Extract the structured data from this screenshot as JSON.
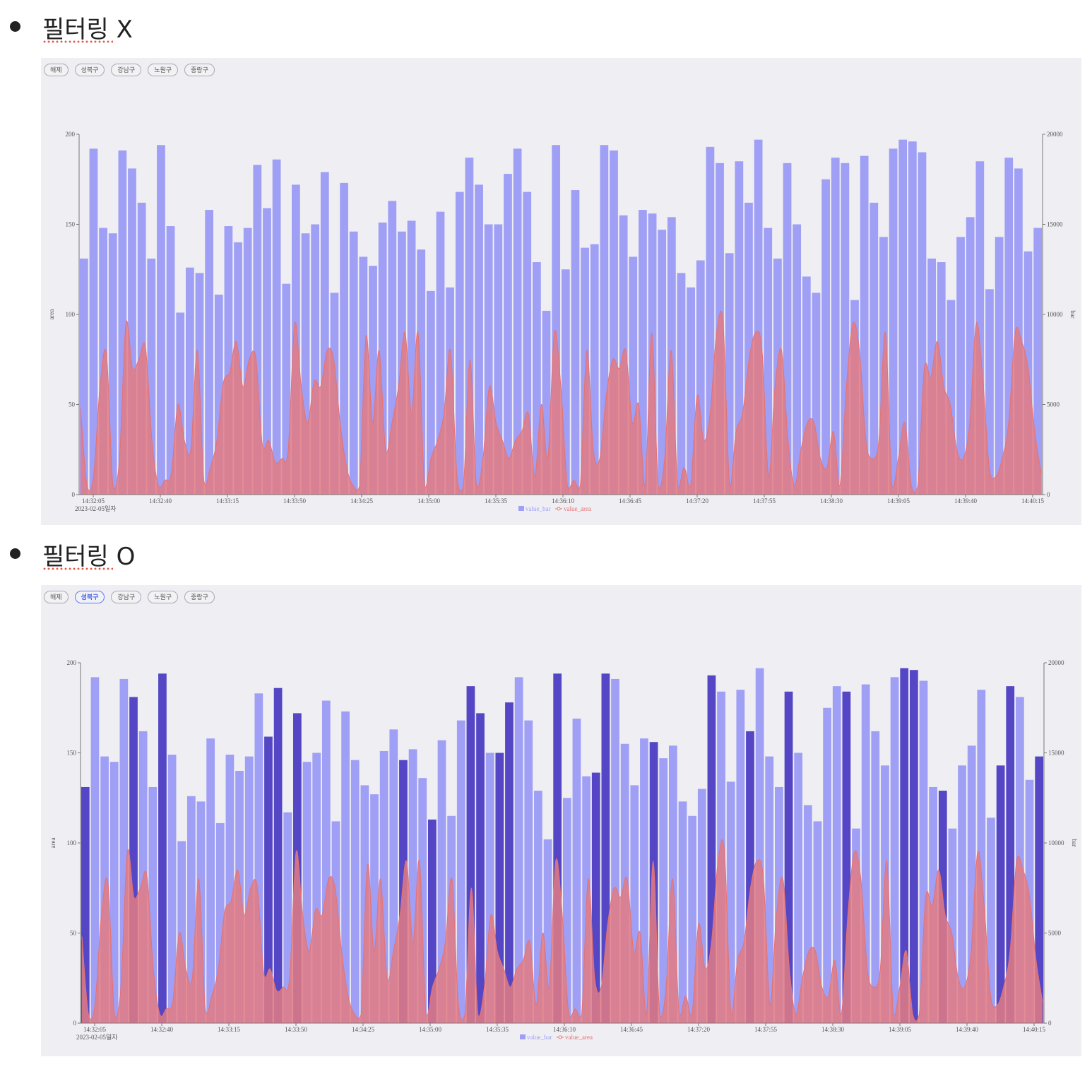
{
  "sections": [
    {
      "title": "필터링 X"
    },
    {
      "title": "필터링 O"
    }
  ],
  "filters": [
    "해제",
    "성북구",
    "강남구",
    "노원구",
    "중랑구"
  ],
  "colors": {
    "bar": "#9f9ff6",
    "bar_highlight": "#5446c4",
    "area_fill": "#e27b84",
    "area_line": "#e57272",
    "panel_bg": "#efeef3"
  },
  "chart_data": [
    {
      "type": "bar+area",
      "active_filter": "",
      "ylabel_left": "area",
      "ylabel_right": "bar",
      "y_left_range": [
        0,
        200
      ],
      "y_right_range": [
        0,
        20000
      ],
      "y_left_ticks": [
        "0",
        "50",
        "100",
        "150",
        "200"
      ],
      "y_right_ticks": [
        "0",
        "5000",
        "10000",
        "15000",
        "20000"
      ],
      "x_ticks": [
        "14:32:05",
        "14:32:40",
        "14:33:15",
        "14:33:50",
        "14:34:25",
        "14:35:00",
        "14:35:35",
        "14:36:10",
        "14:36:45",
        "14:37:20",
        "14:37:55",
        "14:38:30",
        "14:39:05",
        "14:39:40",
        "14:40:15"
      ],
      "date_label": "2023-02-05일자",
      "legend": [
        "value_bar",
        "value_area"
      ],
      "legend_position": "bottom-center",
      "series_bar": [
        13100,
        19200,
        14800,
        14500,
        19100,
        18100,
        16200,
        13100,
        19400,
        14900,
        10100,
        12600,
        12300,
        15800,
        11100,
        14900,
        14000,
        14800,
        18300,
        15900,
        18600,
        11700,
        17200,
        14500,
        15000,
        17900,
        11200,
        17300,
        14600,
        13200,
        12700,
        15100,
        16300,
        14600,
        15200,
        13600,
        11300,
        15700,
        11500,
        16800,
        18700,
        17200,
        15000,
        15000,
        17800,
        19200,
        16800,
        12900,
        10200,
        19400,
        12500,
        16900,
        13700,
        13900,
        19400,
        19100,
        15500,
        13200,
        15800,
        15600,
        14700,
        15400,
        12300,
        11500,
        13000,
        19300,
        18400,
        13400,
        18500,
        16200,
        19700,
        14800,
        13100,
        18400,
        15000,
        12100,
        11200,
        17500,
        18700,
        18400,
        10800,
        18800,
        16200,
        14300,
        19200,
        19700,
        19600,
        19000,
        13100,
        12900,
        10800,
        14300,
        15400,
        18500,
        11400,
        14300,
        18700,
        18100,
        13500,
        14800
      ],
      "series_area": [
        48,
        5,
        10,
        60,
        78,
        5,
        20,
        95,
        70,
        75,
        82,
        30,
        5,
        8,
        12,
        50,
        30,
        25,
        80,
        8,
        15,
        30,
        62,
        68,
        85,
        60,
        75,
        76,
        28,
        30,
        18,
        20,
        25,
        95,
        60,
        40,
        63,
        60,
        80,
        75,
        40,
        15,
        5,
        5,
        88,
        40,
        80,
        25,
        40,
        60,
        90,
        45,
        90,
        5,
        20,
        30,
        45,
        80,
        10,
        5,
        75,
        5,
        20,
        60,
        40,
        30,
        20,
        30,
        35,
        45,
        10,
        50,
        20,
        90,
        60,
        5,
        8,
        5,
        80,
        25,
        20,
        55,
        75,
        70,
        80,
        40,
        50,
        5,
        90,
        5,
        20,
        80,
        5,
        15,
        5,
        55,
        30,
        45,
        90,
        95,
        5,
        35,
        45,
        75,
        90,
        80,
        10,
        60,
        80,
        30,
        5,
        25,
        40,
        40,
        20,
        15,
        35,
        5,
        60,
        95,
        80,
        30,
        20,
        30,
        90,
        5,
        20,
        40,
        5,
        5,
        70,
        65,
        85,
        60,
        50,
        25,
        20,
        40,
        95,
        65,
        15,
        10,
        20,
        40,
        90,
        85,
        70,
        35,
        12
      ],
      "highlighted_bars": []
    },
    {
      "type": "bar+area",
      "active_filter": "성북구",
      "ylabel_left": "area",
      "ylabel_right": "bar",
      "y_left_range": [
        0,
        200
      ],
      "y_right_range": [
        0,
        20000
      ],
      "y_left_ticks": [
        "0",
        "50",
        "100",
        "150",
        "200"
      ],
      "y_right_ticks": [
        "0",
        "5000",
        "10000",
        "15000",
        "20000"
      ],
      "x_ticks": [
        "14:32:05",
        "14:32:40",
        "14:33:15",
        "14:33:50",
        "14:34:25",
        "14:35:00",
        "14:35:35",
        "14:36:10",
        "14:36:45",
        "14:37:20",
        "14:37:55",
        "14:38:30",
        "14:39:05",
        "14:39:40",
        "14:40:15"
      ],
      "date_label": "2023-02-05일자",
      "legend": [
        "value_bar",
        "value_area"
      ],
      "legend_position": "bottom-center",
      "series_bar": [
        13100,
        19200,
        14800,
        14500,
        19100,
        18100,
        16200,
        13100,
        19400,
        14900,
        10100,
        12600,
        12300,
        15800,
        11100,
        14900,
        14000,
        14800,
        18300,
        15900,
        18600,
        11700,
        17200,
        14500,
        15000,
        17900,
        11200,
        17300,
        14600,
        13200,
        12700,
        15100,
        16300,
        14600,
        15200,
        13600,
        11300,
        15700,
        11500,
        16800,
        18700,
        17200,
        15000,
        15000,
        17800,
        19200,
        16800,
        12900,
        10200,
        19400,
        12500,
        16900,
        13700,
        13900,
        19400,
        19100,
        15500,
        13200,
        15800,
        15600,
        14700,
        15400,
        12300,
        11500,
        13000,
        19300,
        18400,
        13400,
        18500,
        16200,
        19700,
        14800,
        13100,
        18400,
        15000,
        12100,
        11200,
        17500,
        18700,
        18400,
        10800,
        18800,
        16200,
        14300,
        19200,
        19700,
        19600,
        19000,
        13100,
        12900,
        10800,
        14300,
        15400,
        18500,
        11400,
        14300,
        18700,
        18100,
        13500,
        14800
      ],
      "series_area": [
        48,
        5,
        10,
        60,
        78,
        5,
        20,
        95,
        70,
        75,
        82,
        30,
        5,
        8,
        12,
        50,
        30,
        25,
        80,
        8,
        15,
        30,
        62,
        68,
        85,
        60,
        75,
        76,
        28,
        30,
        18,
        20,
        25,
        95,
        60,
        40,
        63,
        60,
        80,
        75,
        40,
        15,
        5,
        5,
        88,
        40,
        80,
        25,
        40,
        60,
        90,
        45,
        90,
        5,
        20,
        30,
        45,
        80,
        10,
        5,
        75,
        5,
        20,
        60,
        40,
        30,
        20,
        30,
        35,
        45,
        10,
        50,
        20,
        90,
        60,
        5,
        8,
        5,
        80,
        25,
        20,
        55,
        75,
        70,
        80,
        40,
        50,
        5,
        90,
        5,
        20,
        80,
        5,
        15,
        5,
        55,
        30,
        45,
        90,
        95,
        5,
        35,
        45,
        75,
        90,
        80,
        10,
        60,
        80,
        30,
        5,
        25,
        40,
        40,
        20,
        15,
        35,
        5,
        60,
        95,
        80,
        30,
        20,
        30,
        90,
        5,
        20,
        40,
        5,
        5,
        70,
        65,
        85,
        60,
        50,
        25,
        20,
        40,
        95,
        65,
        15,
        10,
        20,
        40,
        90,
        85,
        70,
        35,
        12
      ],
      "highlighted_bars": [
        0,
        5,
        8,
        19,
        20,
        22,
        33,
        36,
        40,
        41,
        43,
        44,
        49,
        53,
        54,
        59,
        65,
        69,
        73,
        79,
        85,
        86,
        89,
        95,
        96,
        99
      ]
    }
  ]
}
